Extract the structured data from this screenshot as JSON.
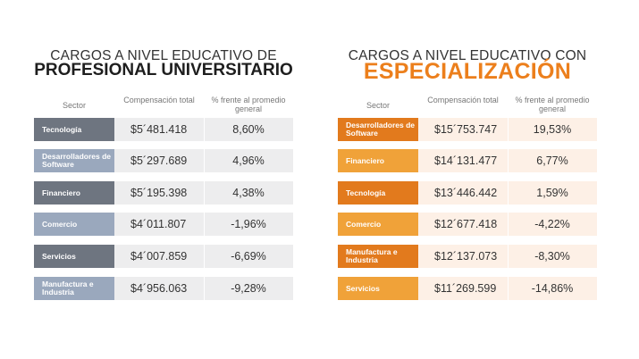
{
  "left": {
    "title_line1": "CARGOS A NIVEL EDUCATIVO DE",
    "title_line2": "PROFESIONAL UNIVERSITARIO",
    "col_sector": "Sector",
    "col_comp": "Compensación total",
    "col_pct": "% frente al promedio general",
    "rows": [
      {
        "sector": "Tecnología",
        "value": "$5´481.418",
        "pct": "8,60%"
      },
      {
        "sector": "Desarrolladores de Software",
        "value": "$5´297.689",
        "pct": "4,96%"
      },
      {
        "sector": "Financiero",
        "value": "$5´195.398",
        "pct": "4,38%"
      },
      {
        "sector": "Comercio",
        "value": "$4´011.807",
        "pct": "-1,96%"
      },
      {
        "sector": "Servicios",
        "value": "$4´007.859",
        "pct": "-6,69%"
      },
      {
        "sector": "Manufactura e Industria",
        "value": "$4´956.063",
        "pct": "-9,28%"
      }
    ]
  },
  "right": {
    "title_line1": "CARGOS A NIVEL EDUCATIVO CON",
    "title_line2": "ESPECIALIZACIÓN",
    "col_sector": "Sector",
    "col_comp": "Compensación total",
    "col_pct": "% frente al promedio general",
    "rows": [
      {
        "sector": "Desarrolladores de Software",
        "value": "$15´753.747",
        "pct": "19,53%"
      },
      {
        "sector": "Financiero",
        "value": "$14´131.477",
        "pct": "6,77%"
      },
      {
        "sector": "Tecnología",
        "value": "$13´446.442",
        "pct": "1,59%"
      },
      {
        "sector": "Comercio",
        "value": "$12´677.418",
        "pct": "-4,22%"
      },
      {
        "sector": "Manufactura e Industria",
        "value": "$12´137.073",
        "pct": "-8,30%"
      },
      {
        "sector": "Servicios",
        "value": "$11´269.599",
        "pct": "-14,86%"
      }
    ]
  },
  "colors": {
    "gray_dark": "#6e7580",
    "gray_light": "#9aa8bd",
    "orange_dark": "#e27a1d",
    "orange_light": "#f0a239",
    "accent_orange": "#ec7f1c"
  }
}
